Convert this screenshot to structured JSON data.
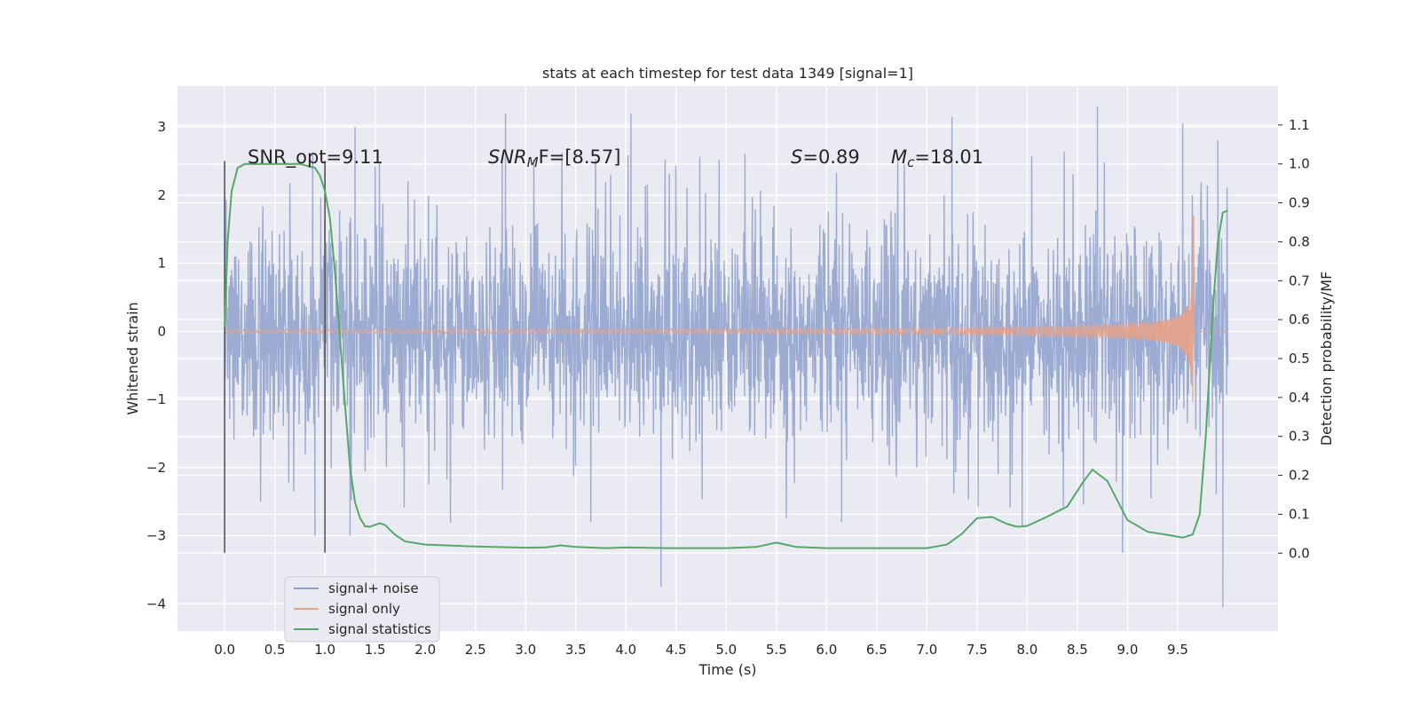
{
  "chart_data": {
    "type": "line",
    "title": "stats at each timestep for test data 1349 [signal=1]",
    "xlabel": "Time (s)",
    "ylabel_left": "Whitened strain",
    "ylabel_right": "Detection probability/MF",
    "xlim": [
      -0.47,
      10.5
    ],
    "ylim_left": [
      -4.4,
      3.6
    ],
    "ylim_right": [
      -0.2,
      1.2
    ],
    "x_ticks": [
      "0.0",
      "0.5",
      "1.0",
      "1.5",
      "2.0",
      "2.5",
      "3.0",
      "3.5",
      "4.0",
      "4.5",
      "5.0",
      "5.5",
      "6.0",
      "6.5",
      "7.0",
      "7.5",
      "8.0",
      "8.5",
      "9.0",
      "9.5"
    ],
    "y_left_ticks": [
      "3",
      "2",
      "1",
      "0",
      "−1",
      "−2",
      "−3",
      "−4"
    ],
    "y_right_ticks": [
      "1.1",
      "1.0",
      "0.9",
      "0.8",
      "0.7",
      "0.6",
      "0.5",
      "0.4",
      "0.3",
      "0.2",
      "0.1",
      "0.0"
    ],
    "grid": true,
    "legend_position": "lower-left",
    "annotations": {
      "snr_opt": "SNR_opt=9.11",
      "snr_mf_italic": "SNR",
      "snr_mf_sub": "M",
      "snr_mf_rest": "F=[8.57]",
      "s_italic": "S",
      "s_rest": "=0.89",
      "mc_italic": "M",
      "mc_sub": "c",
      "mc_rest": "=18.01"
    },
    "vertical_markers": [
      {
        "x": 0.0,
        "ymin": -3.25,
        "ymax": 2.5
      },
      {
        "x": 1.0,
        "ymin": -3.25,
        "ymax": 2.5
      }
    ],
    "series": [
      {
        "name": "signal+ noise",
        "color": "#8da0cb",
        "kind": "noise",
        "x_range": [
          0.0,
          10.0
        ],
        "envelope": {
          "core": 1.3,
          "peak_max": 3.3,
          "peak_min": -4.05
        },
        "extreme_points": [
          {
            "x": 1.3,
            "y": 3.0
          },
          {
            "x": 2.8,
            "y": 3.2
          },
          {
            "x": 4.05,
            "y": 3.2
          },
          {
            "x": 4.35,
            "y": -3.75
          },
          {
            "x": 7.25,
            "y": 3.15
          },
          {
            "x": 8.7,
            "y": 3.3
          },
          {
            "x": 9.55,
            "y": 3.05
          },
          {
            "x": 9.9,
            "y": 2.8
          },
          {
            "x": 9.95,
            "y": -4.05
          },
          {
            "x": 0.9,
            "y": -3.0
          },
          {
            "x": 1.25,
            "y": -3.0
          },
          {
            "x": 3.65,
            "y": -2.8
          },
          {
            "x": 5.6,
            "y": -2.75
          },
          {
            "x": 6.15,
            "y": -2.8
          },
          {
            "x": 7.95,
            "y": -2.85
          },
          {
            "x": 8.95,
            "y": -3.25
          }
        ]
      },
      {
        "name": "signal only",
        "color": "#e8a288",
        "kind": "chirp",
        "x_range": [
          0.0,
          10.0
        ],
        "merger_time": 9.66,
        "peak_amplitude": 1.75
      },
      {
        "name": "signal statistics",
        "color": "#55a868",
        "kind": "line",
        "axis": "right",
        "x": [
          0.0,
          0.03,
          0.07,
          0.13,
          0.2,
          0.3,
          0.5,
          0.75,
          0.9,
          0.95,
          1.0,
          1.05,
          1.1,
          1.15,
          1.2,
          1.25,
          1.3,
          1.35,
          1.4,
          1.45,
          1.5,
          1.55,
          1.6,
          1.7,
          1.8,
          2.0,
          2.5,
          3.0,
          3.2,
          3.35,
          3.5,
          3.8,
          4.0,
          4.4,
          5.0,
          5.3,
          5.5,
          5.7,
          6.0,
          6.5,
          7.0,
          7.2,
          7.35,
          7.5,
          7.65,
          7.8,
          7.9,
          8.0,
          8.2,
          8.4,
          8.55,
          8.65,
          8.8,
          9.0,
          9.2,
          9.4,
          9.55,
          9.65,
          9.72,
          9.78,
          9.85,
          9.9,
          9.95,
          10.0
        ],
        "y": [
          0.58,
          0.8,
          0.93,
          0.99,
          1.0,
          1.0,
          1.0,
          1.0,
          0.99,
          0.97,
          0.93,
          0.86,
          0.72,
          0.55,
          0.38,
          0.22,
          0.13,
          0.09,
          0.069,
          0.068,
          0.073,
          0.077,
          0.072,
          0.047,
          0.03,
          0.022,
          0.017,
          0.014,
          0.015,
          0.02,
          0.016,
          0.013,
          0.015,
          0.013,
          0.013,
          0.016,
          0.027,
          0.016,
          0.013,
          0.013,
          0.013,
          0.022,
          0.05,
          0.09,
          0.093,
          0.075,
          0.068,
          0.07,
          0.094,
          0.12,
          0.18,
          0.215,
          0.185,
          0.085,
          0.055,
          0.047,
          0.04,
          0.048,
          0.1,
          0.3,
          0.62,
          0.8,
          0.875,
          0.88
        ]
      }
    ]
  }
}
